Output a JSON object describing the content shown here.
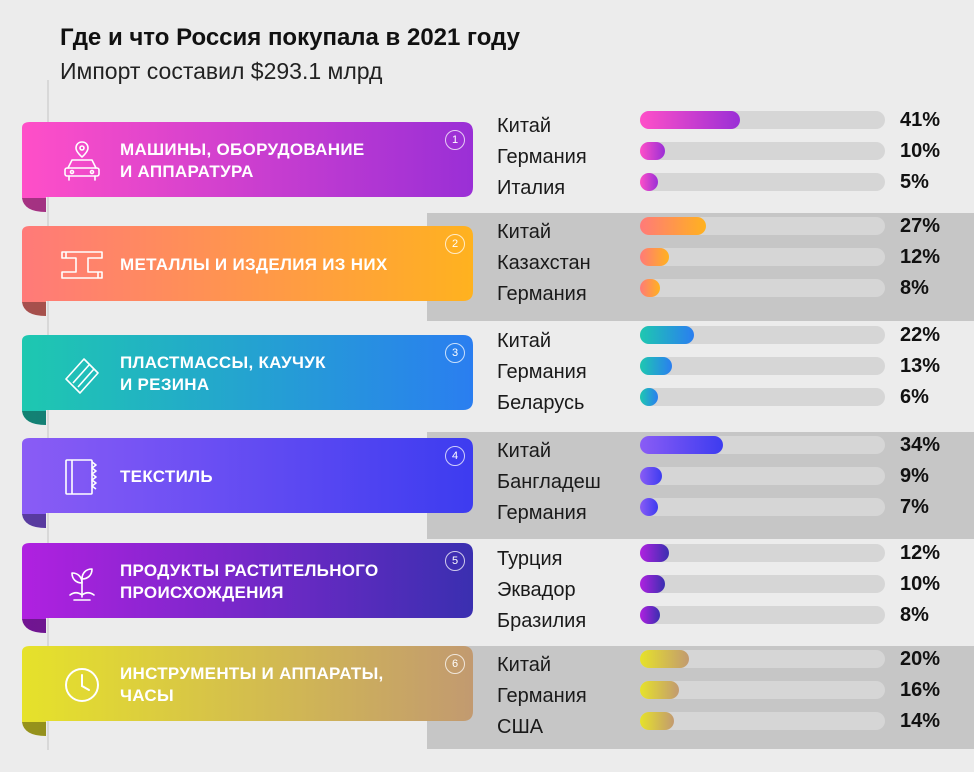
{
  "title": "Где и что Россия покупала в 2021 году",
  "subtitle": "Импорт составил $293.1 млрд",
  "chart_data": {
    "type": "bar",
    "title": "Где и что Россия покупала в 2021 году",
    "subtitle": "Импорт составил $293.1 млрд",
    "unit": "%",
    "xlim": [
      0,
      100
    ],
    "groups": [
      {
        "num": "1",
        "label": "МАШИНЫ, ОБОРУДОВАНИЕ\nИ АППАРАТУРА",
        "icon": "car-icon",
        "colors": [
          "#ff4fc8",
          "#9a2fd6"
        ],
        "items": [
          {
            "country": "Китай",
            "value": 41,
            "label": "41%"
          },
          {
            "country": "Германия",
            "value": 10,
            "label": "10%"
          },
          {
            "country": "Италия",
            "value": 5,
            "label": "5%"
          }
        ]
      },
      {
        "num": "2",
        "label": "МЕТАЛЛЫ И ИЗДЕЛИЯ ИЗ НИХ",
        "icon": "metal-beam-icon",
        "colors": [
          "#ff7a79",
          "#ffb21f"
        ],
        "items": [
          {
            "country": "Китай",
            "value": 27,
            "label": "27%"
          },
          {
            "country": "Казахстан",
            "value": 12,
            "label": "12%"
          },
          {
            "country": "Германия",
            "value": 8,
            "label": "8%"
          }
        ]
      },
      {
        "num": "3",
        "label": "ПЛАСТМАССЫ, КАУЧУК\nИ РЕЗИНА",
        "icon": "rubber-icon",
        "colors": [
          "#1ec8b0",
          "#2a7ef0"
        ],
        "items": [
          {
            "country": "Китай",
            "value": 22,
            "label": "22%"
          },
          {
            "country": "Германия",
            "value": 13,
            "label": "13%"
          },
          {
            "country": "Беларусь",
            "value": 6,
            "label": "6%"
          }
        ]
      },
      {
        "num": "4",
        "label": "ТЕКСТИЛЬ",
        "icon": "textile-icon",
        "colors": [
          "#8a5cf5",
          "#3d3cf0"
        ],
        "items": [
          {
            "country": "Китай",
            "value": 34,
            "label": "34%"
          },
          {
            "country": "Бангладеш",
            "value": 9,
            "label": "9%"
          },
          {
            "country": "Германия",
            "value": 7,
            "label": "7%"
          }
        ]
      },
      {
        "num": "5",
        "label": "ПРОДУКТЫ РАСТИТЕЛЬНОГО\nПРОИСХОЖДЕНИЯ",
        "icon": "plant-icon",
        "colors": [
          "#b021e0",
          "#3a2fb0"
        ],
        "items": [
          {
            "country": "Турция",
            "value": 12,
            "label": "12%"
          },
          {
            "country": "Эквадор",
            "value": 10,
            "label": "10%"
          },
          {
            "country": "Бразилия",
            "value": 8,
            "label": "8%"
          }
        ]
      },
      {
        "num": "6",
        "label": "ИНСТРУМЕНТЫ И АППАРАТЫ,\nЧАСЫ",
        "icon": "clock-icon",
        "colors": [
          "#e6e22a",
          "#c29a70"
        ],
        "items": [
          {
            "country": "Китай",
            "value": 20,
            "label": "20%"
          },
          {
            "country": "Германия",
            "value": 16,
            "label": "16%"
          },
          {
            "country": "США",
            "value": 14,
            "label": "14%"
          }
        ]
      }
    ]
  }
}
